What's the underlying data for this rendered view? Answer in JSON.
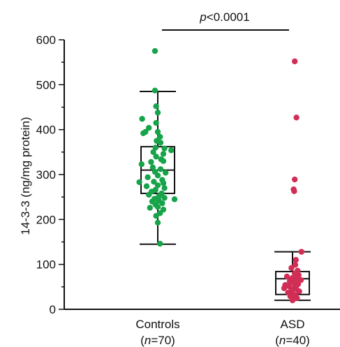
{
  "chart_data": {
    "type": "box-scatter",
    "ylabel": "14-3-3 (ng/mg protein)",
    "ylim": [
      0,
      600
    ],
    "yticks": [
      0,
      100,
      200,
      300,
      400,
      500,
      600
    ],
    "grid": false,
    "significance": {
      "prefix": "p",
      "text": "<0.0001"
    },
    "groups": [
      {
        "category": "Controls",
        "n_label": [
          "(",
          "n",
          "=70)"
        ],
        "color": "#17a34a",
        "box": {
          "whisker_low": 145,
          "q1": 258,
          "median": 310,
          "q3": 362,
          "whisker_high": 485
        },
        "points": [
          [
            -0.05,
            575
          ],
          [
            -0.05,
            487
          ],
          [
            -0.03,
            452
          ],
          [
            0.0,
            438
          ],
          [
            -0.28,
            424
          ],
          [
            -0.16,
            404
          ],
          [
            -0.22,
            395
          ],
          [
            -0.26,
            392
          ],
          [
            -0.03,
            415
          ],
          [
            0.0,
            395
          ],
          [
            0.04,
            384
          ],
          [
            -0.02,
            375
          ],
          [
            0.05,
            371
          ],
          [
            0.12,
            358
          ],
          [
            0.24,
            354
          ],
          [
            -0.04,
            360
          ],
          [
            0.1,
            346
          ],
          [
            -0.08,
            350
          ],
          [
            -0.03,
            340
          ],
          [
            0.06,
            334
          ],
          [
            0.1,
            330
          ],
          [
            -0.12,
            328
          ],
          [
            -0.29,
            323
          ],
          [
            -0.09,
            316
          ],
          [
            0.05,
            312
          ],
          [
            -0.05,
            306
          ],
          [
            0.14,
            304
          ],
          [
            0.0,
            298
          ],
          [
            -0.18,
            294
          ],
          [
            0.08,
            288
          ],
          [
            -0.07,
            284
          ],
          [
            -0.33,
            283
          ],
          [
            0.1,
            281
          ],
          [
            0.0,
            276
          ],
          [
            -0.2,
            274
          ],
          [
            0.12,
            270
          ],
          [
            -0.04,
            266
          ],
          [
            -0.11,
            262
          ],
          [
            0.07,
            258
          ],
          [
            -0.16,
            255
          ],
          [
            0.02,
            252
          ],
          [
            0.12,
            248
          ],
          [
            -0.06,
            246
          ],
          [
            0.3,
            245
          ],
          [
            0.02,
            242
          ],
          [
            -0.1,
            240
          ],
          [
            0.08,
            236
          ],
          [
            -0.04,
            233
          ],
          [
            0.0,
            228
          ],
          [
            -0.14,
            226
          ],
          [
            0.1,
            222
          ],
          [
            0.04,
            214
          ],
          [
            -0.03,
            208
          ],
          [
            0.0,
            193
          ],
          [
            0.04,
            146
          ]
        ]
      },
      {
        "category": "ASD",
        "n_label": [
          "(",
          "n",
          "=40)"
        ],
        "color": "#d12e55",
        "box": {
          "whisker_low": 20,
          "q1": 33,
          "median": 68,
          "q3": 84,
          "whisker_high": 128
        },
        "points": [
          [
            0.04,
            552
          ],
          [
            0.07,
            427
          ],
          [
            0.04,
            289
          ],
          [
            0.02,
            267
          ],
          [
            0.03,
            263
          ],
          [
            0.16,
            128
          ],
          [
            0.06,
            110
          ],
          [
            0.05,
            99
          ],
          [
            -0.02,
            92
          ],
          [
            0.09,
            86
          ],
          [
            0.04,
            80
          ],
          [
            0.11,
            76
          ],
          [
            -0.1,
            73
          ],
          [
            0.0,
            70
          ],
          [
            0.07,
            68
          ],
          [
            0.15,
            65
          ],
          [
            -0.05,
            62
          ],
          [
            0.02,
            59
          ],
          [
            0.1,
            56
          ],
          [
            -0.13,
            54
          ],
          [
            -0.06,
            51
          ],
          [
            0.04,
            49
          ],
          [
            -0.15,
            47
          ],
          [
            0.07,
            45
          ],
          [
            -0.02,
            42
          ],
          [
            0.12,
            40
          ],
          [
            -0.08,
            37
          ],
          [
            0.0,
            35
          ],
          [
            0.05,
            32
          ],
          [
            -0.04,
            29
          ],
          [
            0.08,
            25
          ],
          [
            0.01,
            22
          ],
          [
            0.0,
            20
          ]
        ]
      }
    ]
  }
}
